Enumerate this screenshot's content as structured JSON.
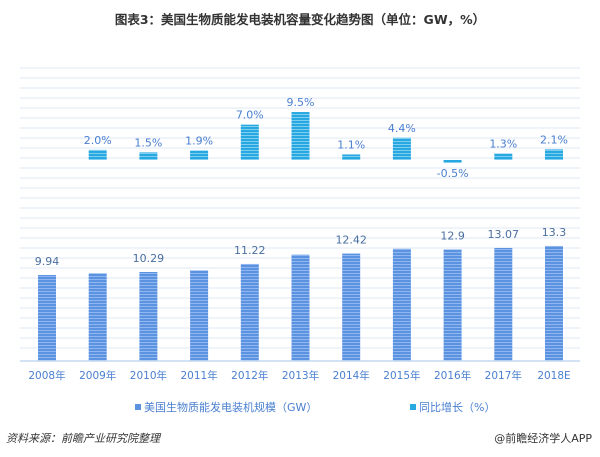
{
  "title": "图表3：美国生物质能发电装机容量变化趋势图（单位：GW，%）",
  "colors": {
    "capacity": "#5b93e0",
    "growth": "#28a8e0",
    "grid": "#dce8f6",
    "label": "#4a7fd0"
  },
  "chart_data": [
    {
      "type": "bar",
      "series": [
        {
          "name": "同比增长（%）",
          "values": [
            null,
            2.0,
            1.5,
            1.9,
            7.0,
            9.5,
            1.1,
            4.4,
            -0.5,
            1.3,
            2.1
          ],
          "labels": [
            "",
            "2.0%",
            "1.5%",
            "1.9%",
            "7.0%",
            "9.5%",
            "1.1%",
            "4.4%",
            "-0.5%",
            "1.3%",
            "2.1%"
          ]
        }
      ],
      "categories": [
        "2008年",
        "2009年",
        "2010年",
        "2011年",
        "2012年",
        "2013年",
        "2014年",
        "2015年",
        "2016年",
        "2017年",
        "2018E"
      ],
      "grid": true
    },
    {
      "type": "bar",
      "series": [
        {
          "name": "美国生物质能发电装机规模（GW）",
          "values": [
            9.94,
            10.14,
            10.29,
            10.48,
            11.22,
            12.29,
            12.42,
            12.97,
            12.9,
            13.07,
            13.3
          ],
          "labels": [
            "9.94",
            "",
            "10.29",
            "",
            "11.22",
            "",
            "12.42",
            "",
            "12.9",
            "13.07",
            "13.3"
          ]
        }
      ],
      "categories": [
        "2008年",
        "2009年",
        "2010年",
        "2011年",
        "2012年",
        "2013年",
        "2014年",
        "2015年",
        "2016年",
        "2017年",
        "2018E"
      ],
      "grid": true
    }
  ],
  "legend": {
    "capacity": "美国生物质能发电装机规模（GW）",
    "growth": "同比增长（%）"
  },
  "source": "资料来源：前瞻产业研究院整理",
  "credit": "@前瞻经济学人APP"
}
